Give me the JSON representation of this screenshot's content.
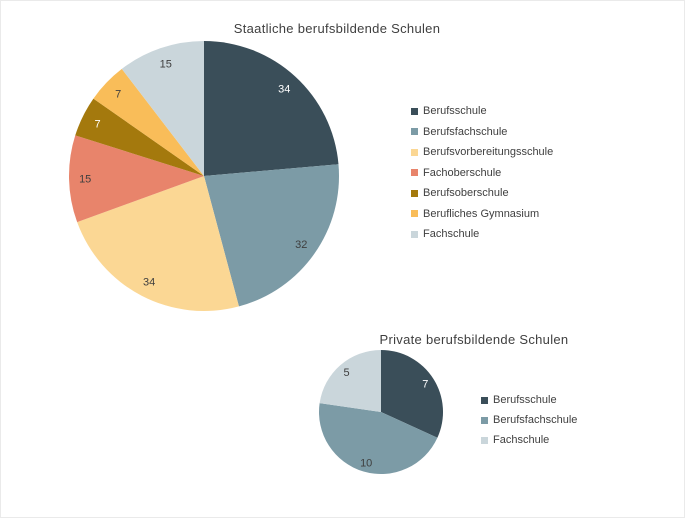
{
  "page": {
    "background": "#FFFFFF",
    "border_color": "#EAEAEA",
    "text_color": "#3F3F3F"
  },
  "chart_data": [
    {
      "type": "pie",
      "title": "Staatliche berufsbildende Schulen",
      "categories": [
        "Berufsschule",
        "Berufsfachschule",
        "Berufsvorbereitungsschule",
        "Fachoberschule",
        "Berufsoberschule",
        "Berufliches Gymnasium",
        "Fachschule"
      ],
      "values": [
        34,
        32,
        34,
        15,
        7,
        7,
        15
      ],
      "colors": [
        "#3A4E59",
        "#7C9BA6",
        "#FBD794",
        "#E8846B",
        "#A4790D",
        "#F9BD59",
        "#CAD6DB"
      ],
      "value_label_colors": [
        "#FFFFFF",
        "#3F3F3F",
        "#3F3F3F",
        "#3F3F3F",
        "#FFFFFF",
        "#3F3F3F",
        "#3F3F3F"
      ],
      "start_angle": 0,
      "direction": "clockwise",
      "legend_position": "right",
      "label_distance": 0.88
    },
    {
      "type": "pie",
      "title": "Private berufsbildende Schulen",
      "categories": [
        "Berufsschule",
        "Berufsfachschule",
        "Fachschule"
      ],
      "values": [
        7,
        10,
        5
      ],
      "colors": [
        "#3A4E59",
        "#7C9BA6",
        "#CAD6DB"
      ],
      "value_label_colors": [
        "#FFFFFF",
        "#3F3F3F",
        "#3F3F3F"
      ],
      "start_angle": 0,
      "direction": "clockwise",
      "legend_position": "right",
      "label_distance": 0.85
    }
  ]
}
